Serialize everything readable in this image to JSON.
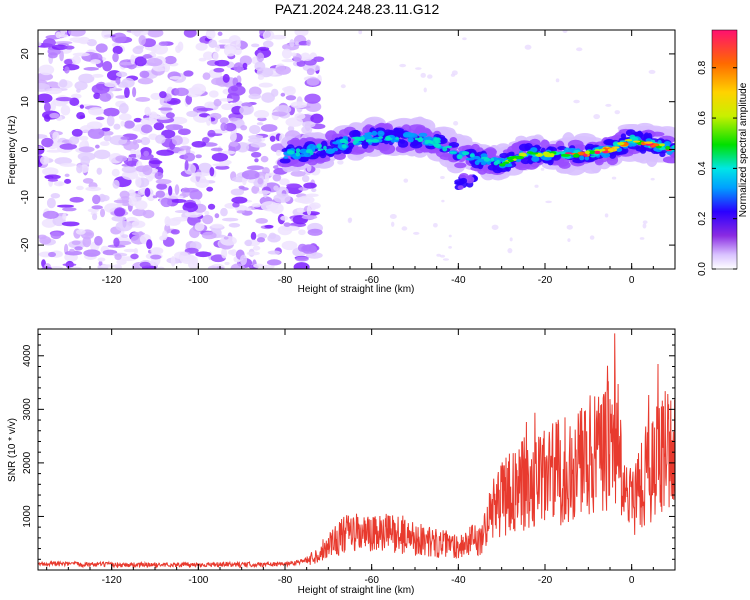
{
  "title": "PAZ1.2024.248.23.11.G12",
  "chart_data": [
    {
      "type": "heatmap",
      "xlabel": "Height of straight line (km)",
      "ylabel": "Frequency (Hz)",
      "xlim": [
        -137,
        10
      ],
      "ylim": [
        -25,
        25
      ],
      "xticks": [
        -120,
        -100,
        -80,
        -60,
        -40,
        -20,
        0
      ],
      "yticks": [
        20,
        10,
        0,
        -10,
        -20
      ],
      "colorbar": {
        "label": "Normalized spectral amplitude",
        "range": [
          0,
          0.95
        ],
        "ticks": [
          0.0,
          0.2,
          0.4,
          0.6,
          0.8
        ]
      },
      "ridge": {
        "x": [
          -80,
          -75,
          -70,
          -65,
          -60,
          -55,
          -50,
          -45,
          -40,
          -35,
          -30,
          -25,
          -20,
          -15,
          -10,
          -5,
          0,
          5,
          10
        ],
        "freq": [
          -1,
          -0.5,
          0.5,
          1.5,
          2.5,
          2.5,
          2.5,
          1.5,
          -1,
          -2,
          -3,
          -1,
          -1,
          -1,
          -1,
          0,
          2,
          1,
          0
        ]
      }
    },
    {
      "type": "line",
      "xlabel": "Height of straight line (km)",
      "ylabel": "SNR (10 * v/v)",
      "xlim": [
        -137,
        10
      ],
      "ylim": [
        0,
        4500
      ],
      "xticks": [
        -120,
        -100,
        -80,
        -60,
        -40,
        -20,
        0
      ],
      "yticks": [
        1000,
        2000,
        3000,
        4000
      ],
      "series": [
        {
          "color": "#e83a2e",
          "x": [
            -137,
            -130,
            -120,
            -110,
            -100,
            -90,
            -80,
            -75,
            -72,
            -70,
            -65,
            -60,
            -55,
            -50,
            -45,
            -40,
            -35,
            -32,
            -30,
            -25,
            -20,
            -15,
            -10,
            -5,
            -3,
            -2,
            0,
            2,
            5,
            8,
            10
          ],
          "y": [
            120,
            110,
            100,
            95,
            100,
            100,
            110,
            180,
            300,
            500,
            700,
            650,
            700,
            600,
            500,
            450,
            600,
            1100,
            1300,
            1600,
            1700,
            1900,
            2100,
            2200,
            2600,
            1300,
            1300,
            1700,
            1900,
            2300,
            2500
          ]
        }
      ]
    }
  ]
}
